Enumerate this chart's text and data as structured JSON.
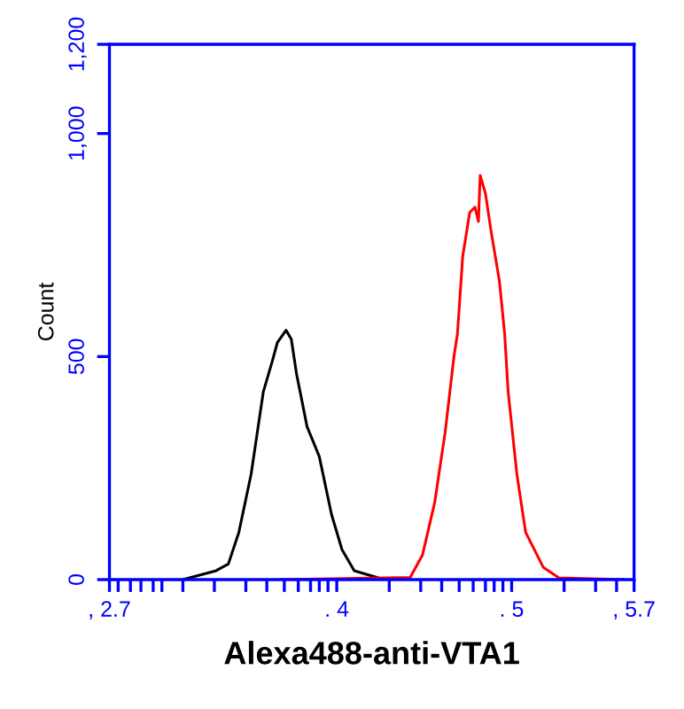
{
  "chart_data": {
    "type": "line",
    "xlabel": "Alexa488-anti-VTA1",
    "ylabel": "Count",
    "xlim": [
      2.7,
      5.7
    ],
    "ylim": [
      0,
      1200
    ],
    "xticks": [
      {
        "value": 2.7,
        "label": ", 2.7"
      },
      {
        "value": 2.75,
        "label": null
      },
      {
        "value": 2.82,
        "label": null
      },
      {
        "value": 2.88,
        "label": null
      },
      {
        "value": 2.95,
        "label": null
      },
      {
        "value": 3.0,
        "label": null
      },
      {
        "value": 3.12,
        "label": null
      },
      {
        "value": 3.3,
        "label": null
      },
      {
        "value": 3.48,
        "label": null
      },
      {
        "value": 3.6,
        "label": null
      },
      {
        "value": 3.7,
        "label": null
      },
      {
        "value": 3.78,
        "label": null
      },
      {
        "value": 3.85,
        "label": null
      },
      {
        "value": 3.9,
        "label": null
      },
      {
        "value": 3.95,
        "label": null
      },
      {
        "value": 4,
        "label": ". 4"
      },
      {
        "value": 4.3,
        "label": null
      },
      {
        "value": 4.48,
        "label": null
      },
      {
        "value": 4.6,
        "label": null
      },
      {
        "value": 4.7,
        "label": null
      },
      {
        "value": 4.78,
        "label": null
      },
      {
        "value": 4.85,
        "label": null
      },
      {
        "value": 4.9,
        "label": null
      },
      {
        "value": 4.95,
        "label": null
      },
      {
        "value": 5,
        "label": ". 5"
      },
      {
        "value": 5.3,
        "label": null
      },
      {
        "value": 5.48,
        "label": null
      },
      {
        "value": 5.6,
        "label": null
      },
      {
        "value": 5.7,
        "label": ", 5.7"
      }
    ],
    "yticks": [
      0,
      500,
      {
        "value": 1000,
        "label": "1,000"
      },
      {
        "value": 1200,
        "label": "1,200"
      }
    ],
    "grid": false,
    "legend": false,
    "series": [
      {
        "color": "#000000",
        "x": [
          3.12,
          3.31,
          3.38,
          3.44,
          3.51,
          3.58,
          3.63,
          3.66,
          3.71,
          3.74,
          3.77,
          3.83,
          3.9,
          3.97,
          4.03,
          4.1,
          4.23
        ],
        "values": [
          0,
          20,
          35,
          106,
          236,
          421,
          488,
          531,
          559,
          539,
          461,
          343,
          276,
          146,
          67,
          20,
          5
        ]
      },
      {
        "color": "#ff0000",
        "x": [
          3.68,
          4.42,
          4.49,
          4.56,
          4.62,
          4.67,
          4.69,
          4.72,
          4.76,
          4.79,
          4.81,
          4.82,
          4.85,
          4.88,
          4.93,
          4.96,
          4.98,
          5.03,
          5.08,
          5.18,
          5.27,
          5.64
        ],
        "values": [
          0,
          5,
          55,
          173,
          331,
          500,
          551,
          724,
          823,
          835,
          803,
          906,
          866,
          787,
          669,
          551,
          421,
          236,
          106,
          28,
          4,
          0
        ]
      }
    ]
  }
}
